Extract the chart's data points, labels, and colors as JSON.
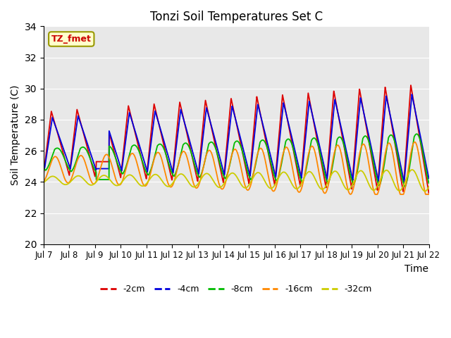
{
  "title": "Tonzi Soil Temperatures Set C",
  "xlabel": "Time",
  "ylabel": "Soil Temperature (C)",
  "ylim": [
    20,
    34
  ],
  "xlim_days": [
    0,
    15
  ],
  "annotation": "TZ_fmet",
  "colors": {
    "-2cm": "#dd0000",
    "-4cm": "#0000dd",
    "-8cm": "#00bb00",
    "-16cm": "#ff8800",
    "-32cm": "#cccc00"
  },
  "legend_labels": [
    "-2cm",
    "-4cm",
    "-8cm",
    "-16cm",
    "-32cm"
  ],
  "bg_color": "#e8e8e8",
  "fig_bg": "#ffffff",
  "grid_color": "#ffffff",
  "tick_labels": [
    "Jul 7",
    "Jul 8",
    "Jul 9",
    "Jul 10",
    "Jul 11",
    "Jul 12",
    "Jul 13",
    "Jul 14",
    "Jul 15",
    "Jul 16",
    "Jul 17",
    "Jul 18",
    "Jul 19",
    "Jul 20",
    "Jul 21",
    "Jul 22"
  ],
  "tick_positions": [
    0,
    1,
    2,
    3,
    4,
    5,
    6,
    7,
    8,
    9,
    10,
    11,
    12,
    13,
    14,
    15
  ]
}
